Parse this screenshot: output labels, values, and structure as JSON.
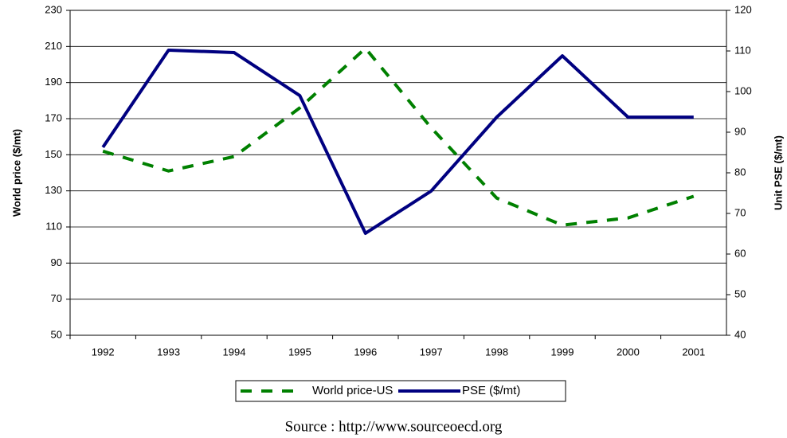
{
  "chart_data": {
    "type": "line",
    "y_label": "World price ($/mt)",
    "y2_label": "Unit PSE ($/mt)",
    "source": "Source : http://www.sourceoecd.org",
    "categories": [
      "1992",
      "1993",
      "1994",
      "1995",
      "1996",
      "1997",
      "1998",
      "1999",
      "2000",
      "2001"
    ],
    "series": [
      {
        "name": "World price-US",
        "color": "#008000",
        "dashed": true,
        "axis": "y",
        "values": [
          152,
          141,
          149,
          176,
          209,
          165,
          126,
          111,
          115,
          127
        ]
      },
      {
        "name": "PSE ($/mt)",
        "color": "#000080",
        "dashed": false,
        "axis": "y2",
        "values": [
          86.3,
          110.2,
          109.6,
          99,
          65.1,
          75.5,
          93.7,
          108.8,
          93.7,
          93.7
        ]
      }
    ],
    "ylim": [
      50,
      230
    ],
    "yticks": [
      50,
      70,
      90,
      110,
      130,
      150,
      170,
      190,
      210,
      230
    ],
    "y2lim": [
      40,
      120
    ],
    "y2ticks": [
      40,
      50,
      60,
      70,
      80,
      90,
      100,
      110,
      120
    ],
    "grid": true
  }
}
